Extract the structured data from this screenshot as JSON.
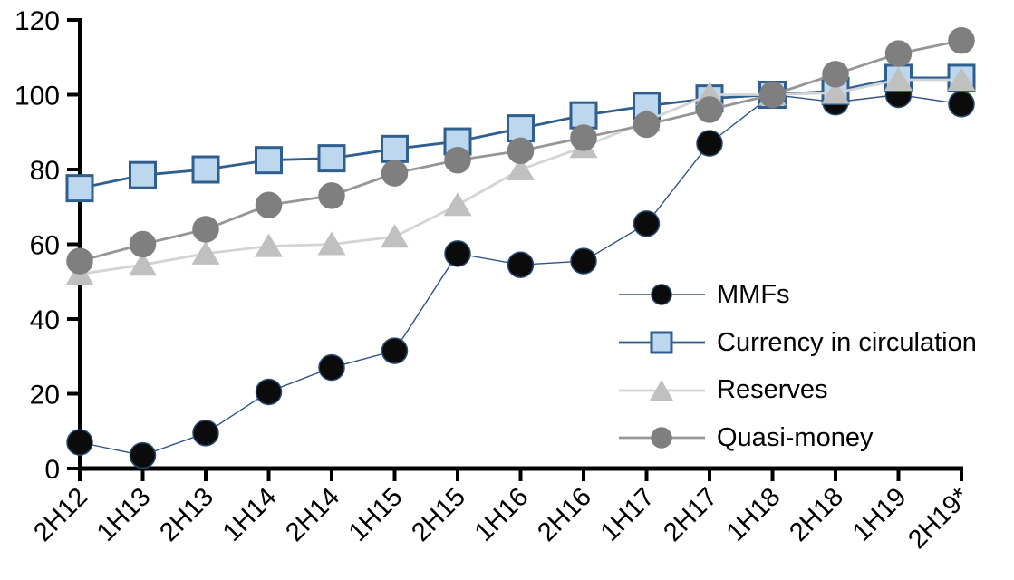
{
  "chart_data": {
    "type": "line",
    "title": "",
    "xlabel": "",
    "ylabel": "",
    "categories": [
      "2H12",
      "1H13",
      "2H13",
      "1H14",
      "2H14",
      "1H15",
      "2H15",
      "1H16",
      "2H16",
      "1H17",
      "2H17",
      "1H18",
      "2H18",
      "1H19",
      "2H19*"
    ],
    "series": [
      {
        "name": "MMFs",
        "marker": "circle",
        "marker_fill": "#0b0b0b",
        "marker_stroke": "#2a4a74",
        "line_color": "#32538a",
        "line_width": 1.4,
        "values": [
          7,
          3.5,
          9.5,
          20.5,
          27,
          31.5,
          57.5,
          54.5,
          55.5,
          65.5,
          87,
          100,
          98,
          100,
          97.5
        ]
      },
      {
        "name": "Currency in circulation",
        "marker": "square",
        "marker_fill": "#bdd7ee",
        "marker_stroke": "#2e5f8f",
        "line_color": "#2e5f8f",
        "line_width": 2.8,
        "values": [
          75,
          78.5,
          80,
          82.5,
          83,
          85.5,
          87.5,
          91,
          94.5,
          97,
          99,
          100,
          101,
          104.5,
          104.5
        ]
      },
      {
        "name": "Reserves",
        "marker": "triangle",
        "marker_fill": "#c0c0c0",
        "marker_stroke": "#c0c0c0",
        "line_color": "#d4d4d4",
        "line_width": 2.8,
        "values": [
          52,
          54.5,
          57.5,
          59.5,
          60,
          62,
          70.5,
          80,
          86,
          93,
          100,
          100,
          100.5,
          104,
          104
        ]
      },
      {
        "name": "Quasi-money",
        "marker": "circle",
        "marker_fill": "#7f7f7f",
        "marker_stroke": "#7f7f7f",
        "line_color": "#969696",
        "line_width": 2.8,
        "values": [
          55.5,
          60,
          64,
          70.5,
          73,
          79,
          82.5,
          85,
          88.5,
          92,
          96,
          100,
          105.5,
          111,
          114.5
        ]
      }
    ],
    "ylim": [
      0,
      120
    ],
    "yticks": [
      0,
      20,
      40,
      60,
      80,
      100,
      120
    ],
    "grid": false,
    "legend_position": "inside-right",
    "axis_color": "#000000",
    "background_color": "#ffffff"
  }
}
